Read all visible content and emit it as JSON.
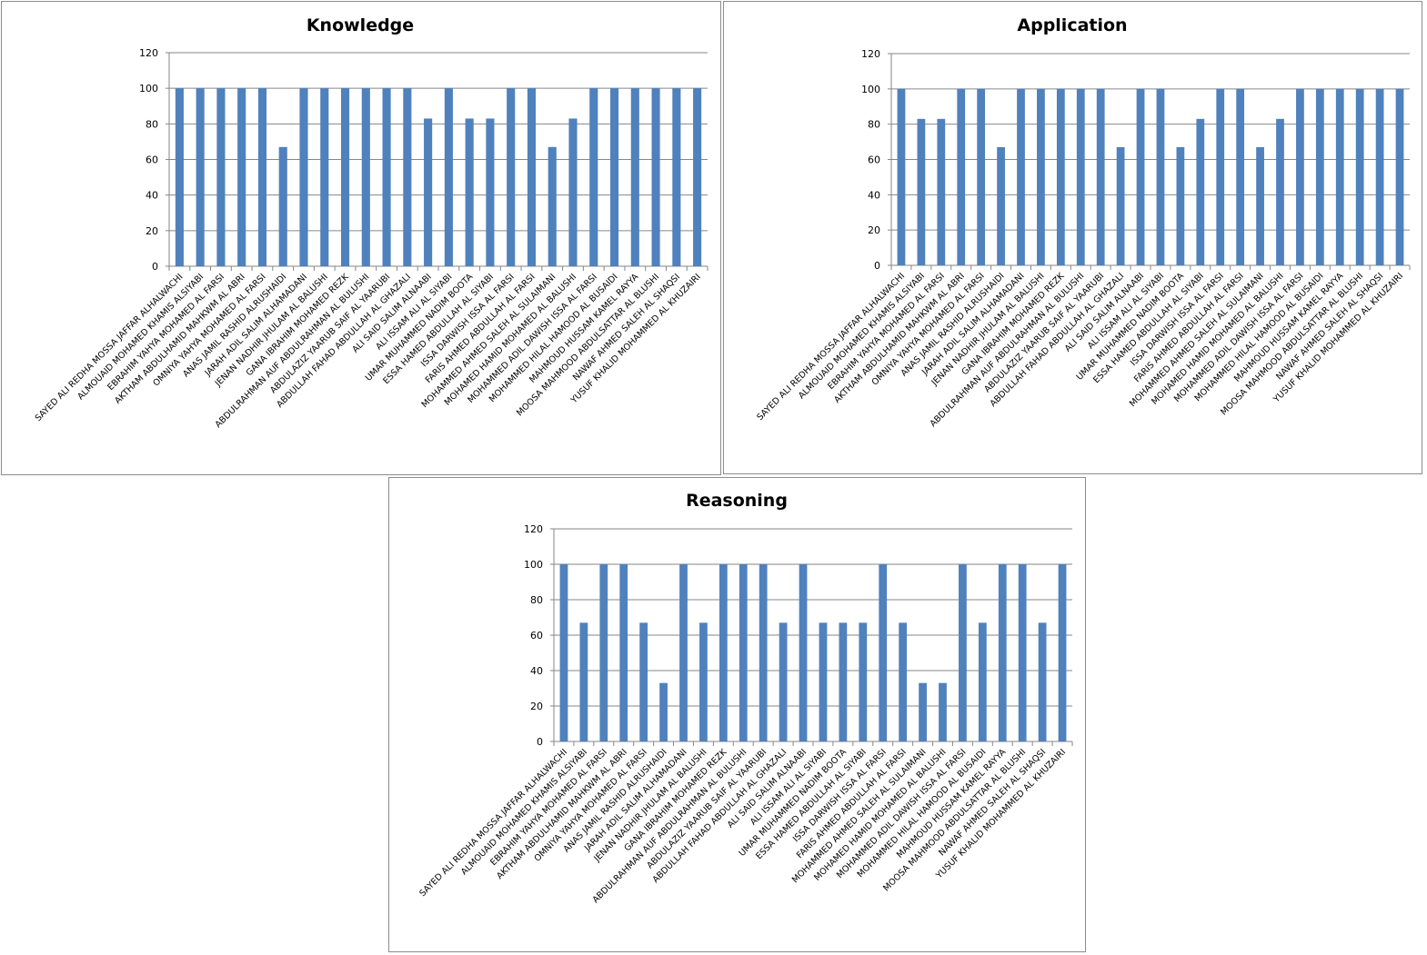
{
  "chart_data": [
    {
      "type": "bar",
      "title": "Knowledge",
      "xlabel": "",
      "ylabel": "",
      "ylim": [
        0,
        120
      ],
      "yticks": [
        0,
        20,
        40,
        60,
        80,
        100,
        120
      ],
      "grid": true,
      "legend": "none",
      "color": "#4f81bd",
      "categories": [
        "SAYED ALI REDHA MOSSA JAFFAR ALHALWACHI",
        "ALMOUAID MOHAMED KHAMIS ALSIYABI",
        "EBRAHIM YAHYA MOHAMED AL FARSI",
        "AKTHAM ABDULHAMID MAHKWM AL ABRI",
        "OMNIYA YAHYA MOHAMED AL FARSI",
        "ANAS JAMIL RASHID ALRUSHAIDI",
        "JARAH ADIL SALIM ALHAMADANI",
        "JENAN NADHIR JHULAM AL BALUSHI",
        "GANA IBRAHIM MOHAMED REZK",
        "ABDULRAHMAN AUF ABDULRAHMAN AL BULUSHI",
        "ABDULAZIZ YAARUB SAIF AL YAARUBI",
        "ABDULLAH FAHAD ABDULLAH AL GHAZALI",
        "ALI SAID SALIM ALNAABI",
        "ALI ISSAM ALI AL SIYABI",
        "UMAR MUHAMMED NADIM BOOTA",
        "ESSA HAMED ABDULLAH AL SIYABI",
        "ISSA DARWISH ISSA AL FARSI",
        "FARIS AHMED ABDULLAH AL FARSI",
        "MOHAMMED AHMED SALEH AL SULAIMANI",
        "MOHAMED HAMID MOHAMED AL BALUSHI",
        "MOHAMMED ADIL DAWISH ISSA AL FARSI",
        "MOHAMMED HILAL HAMOOD AL BUSAIDI",
        "MAHMOUD HUSSAM KAMEL RAYYA",
        "MOOSA MAHMOOD ABDULSATTAR AL BLUSHI",
        "NAWAF AHMED SALEH AL SHAQSI",
        "YUSUF KHALID MOHAMMED AL KHUZAIRI"
      ],
      "values": [
        100,
        100,
        100,
        100,
        100,
        67,
        100,
        100,
        100,
        100,
        100,
        100,
        83,
        100,
        83,
        83,
        100,
        100,
        67,
        83,
        100,
        100,
        100,
        100,
        100,
        100
      ]
    },
    {
      "type": "bar",
      "title": "Application",
      "xlabel": "",
      "ylabel": "",
      "ylim": [
        0,
        120
      ],
      "yticks": [
        0,
        20,
        40,
        60,
        80,
        100,
        120
      ],
      "grid": true,
      "legend": "none",
      "color": "#4f81bd",
      "categories": [
        "SAYED ALI REDHA MOSSA JAFFAR ALHALWACHI",
        "ALMOUAID MOHAMED KHAMIS ALSIYABI",
        "EBRAHIM YAHYA MOHAMED AL FARSI",
        "AKTHAM ABDULHAMID MAHKWM AL ABRI",
        "OMNIYA YAHYA MOHAMED AL FARSI",
        "ANAS JAMIL RASHID ALRUSHAIDI",
        "JARAH ADIL SALIM ALHAMADANI",
        "JENAN NADHIR JHULAM AL BALUSHI",
        "GANA IBRAHIM MOHAMED REZK",
        "ABDULRAHMAN AUF ABDULRAHMAN AL BULUSHI",
        "ABDULAZIZ YAARUB SAIF AL YAARUBI",
        "ABDULLAH FAHAD ABDULLAH AL GHAZALI",
        "ALI SAID SALIM ALNAABI",
        "ALI ISSAM ALI AL SIYABI",
        "UMAR MUHAMMED NADIM BOOTA",
        "ESSA HAMED ABDULLAH AL SIYABI",
        "ISSA DARWISH ISSA AL FARSI",
        "FARIS AHMED ABDULLAH AL FARSI",
        "MOHAMMED AHMED SALEH AL SULAIMANI",
        "MOHAMED HAMID MOHAMED AL BALUSHI",
        "MOHAMMED ADIL DAWISH ISSA AL FARSI",
        "MOHAMMED HILAL HAMOOD AL BUSAIDI",
        "MAHMOUD HUSSAM KAMEL RAYYA",
        "MOOSA MAHMOOD ABDULSATTAR AL BLUSHI",
        "NAWAF AHMED SALEH AL SHAQSI",
        "YUSUF KHALID MOHAMMED AL KHUZAIRI"
      ],
      "values": [
        100,
        83,
        83,
        100,
        100,
        67,
        100,
        100,
        100,
        100,
        100,
        67,
        100,
        100,
        67,
        83,
        100,
        100,
        67,
        83,
        100,
        100,
        100,
        100,
        100,
        100
      ]
    },
    {
      "type": "bar",
      "title": "Reasoning",
      "xlabel": "",
      "ylabel": "",
      "ylim": [
        0,
        120
      ],
      "yticks": [
        0,
        20,
        40,
        60,
        80,
        100,
        120
      ],
      "grid": true,
      "legend": "none",
      "color": "#4f81bd",
      "categories": [
        "SAYED ALI REDHA MOSSA JAFFAR ALHALWACHI",
        "ALMOUAID MOHAMED KHAMIS ALSIYABI",
        "EBRAHIM YAHYA MOHAMED AL FARSI",
        "AKTHAM ABDULHAMID MAHKWM AL ABRI",
        "OMNIYA YAHYA MOHAMED AL FARSI",
        "ANAS JAMIL RASHID ALRUSHAIDI",
        "JARAH ADIL SALIM ALHAMADANI",
        "JENAN NADHIR JHULAM AL BALUSHI",
        "GANA IBRAHIM MOHAMED REZK",
        "ABDULRAHMAN AUF ABDULRAHMAN AL BULUSHI",
        "ABDULAZIZ YAARUB SAIF AL YAARUBI",
        "ABDULLAH FAHAD ABDULLAH AL GHAZALI",
        "ALI SAID SALIM ALNAABI",
        "ALI ISSAM ALI AL SIYABI",
        "UMAR MUHAMMED NADIM BOOTA",
        "ESSA HAMED ABDULLAH AL SIYABI",
        "ISSA DARWISH ISSA AL FARSI",
        "FARIS AHMED ABDULLAH AL FARSI",
        "MOHAMMED AHMED SALEH AL SULAIMANI",
        "MOHAMED HAMID MOHAMED AL BALUSHI",
        "MOHAMMED ADIL DAWISH ISSA AL FARSI",
        "MOHAMMED HILAL HAMOOD AL BUSAIDI",
        "MAHMOUD HUSSAM KAMEL RAYYA",
        "MOOSA MAHMOOD ABDULSATTAR AL BLUSHI",
        "NAWAF AHMED SALEH AL SHAQSI",
        "YUSUF KHALID MOHAMMED AL KHUZAIRI"
      ],
      "values": [
        100,
        67,
        100,
        100,
        67,
        33,
        100,
        67,
        100,
        100,
        100,
        67,
        100,
        67,
        67,
        67,
        100,
        67,
        33,
        33,
        100,
        67,
        100,
        100,
        67,
        100
      ]
    }
  ]
}
